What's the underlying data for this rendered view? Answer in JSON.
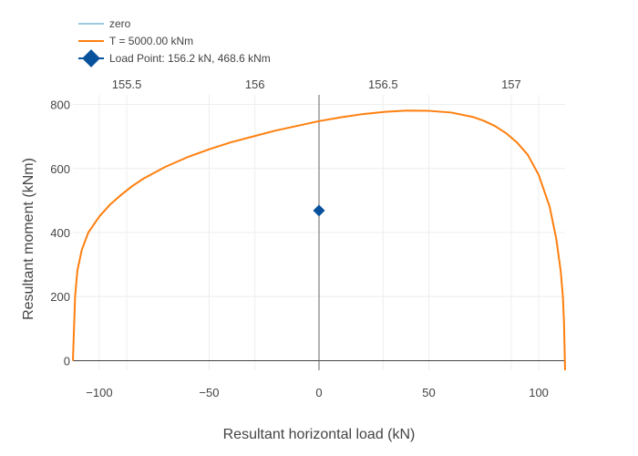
{
  "chart_data": {
    "type": "line",
    "title": "",
    "xlabel": "Resultant horizontal load (kN)",
    "ylabel": "Resultant moment (kNm)",
    "xlim": [
      -112,
      112
    ],
    "ylim": [
      -30,
      830
    ],
    "x_ticks": [
      -100,
      -50,
      0,
      50,
      100
    ],
    "x_tick_labels": [
      "−100",
      "−50",
      "0",
      "50",
      "100"
    ],
    "y_ticks": [
      0,
      200,
      400,
      600,
      800
    ],
    "y_tick_labels": [
      "0",
      "200",
      "400",
      "600",
      "800"
    ],
    "secondary_x": {
      "ticks": [
        155.5,
        156,
        156.5,
        157
      ],
      "tick_labels": [
        "155.5",
        "156",
        "156.5",
        "157"
      ],
      "range": [
        155.29,
        157.21
      ]
    },
    "grid": true,
    "legend_position": "top-left",
    "series": [
      {
        "name": "zero",
        "color": "#9ecae1",
        "kind": "line",
        "x": [
          0,
          0
        ],
        "y": [
          -30,
          830
        ]
      },
      {
        "name": "T = 5000.00 kNm",
        "color": "#ff7f0e",
        "kind": "line",
        "x": [
          -112,
          -111,
          -110,
          -108,
          -105,
          -100,
          -95,
          -90,
          -85,
          -80,
          -70,
          -60,
          -50,
          -40,
          -30,
          -20,
          -10,
          0,
          10,
          20,
          30,
          40,
          50,
          60,
          70,
          75,
          80,
          85,
          90,
          95,
          100,
          105,
          108,
          110,
          111,
          111.5,
          112
        ],
        "y": [
          0,
          200,
          280,
          345,
          400,
          450,
          488,
          518,
          545,
          568,
          605,
          635,
          660,
          682,
          700,
          718,
          733,
          748,
          760,
          770,
          777,
          781,
          780,
          775,
          761,
          749,
          733,
          711,
          682,
          643,
          580,
          480,
          380,
          280,
          200,
          120,
          -30
        ]
      },
      {
        "name": "Load Point: 156.2 kN, 468.6 kNm",
        "color": "#08519c",
        "kind": "marker",
        "x": [
          0
        ],
        "y": [
          468.6
        ]
      }
    ]
  }
}
